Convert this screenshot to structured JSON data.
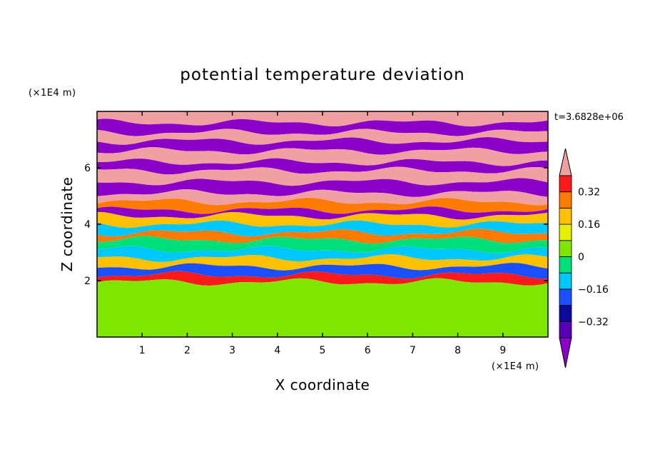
{
  "chart_data": {
    "type": "heatmap",
    "title": "potential temperature deviation",
    "xlabel": "X coordinate",
    "ylabel": "Z coordinate",
    "x_unit": "(×1E4 m)",
    "y_unit": "(×1E4 m)",
    "xlim": [
      0,
      10
    ],
    "ylim": [
      0,
      8
    ],
    "x_ticks": [
      "1",
      "2",
      "3",
      "4",
      "5",
      "6",
      "7",
      "8",
      "9"
    ],
    "y_ticks": [
      "2",
      "4",
      "6"
    ],
    "time_stamp": "t=3.6828e+06",
    "colorbar": {
      "levels": [
        -0.48,
        -0.4,
        -0.32,
        -0.24,
        -0.16,
        -0.08,
        0,
        0.08,
        0.16,
        0.24,
        0.32,
        0.4,
        0.48
      ],
      "tick_labels": [
        "0.32",
        "0.16",
        "0",
        "−0.16",
        "−0.32"
      ],
      "tick_values": [
        0.32,
        0.16,
        0,
        -0.16,
        -0.32
      ],
      "colors_low_to_high": [
        "#8b00c8",
        "#5a00b4",
        "#0a0a9c",
        "#1a50ff",
        "#00c8ff",
        "#00e07a",
        "#7ee600",
        "#e6f000",
        "#ffc000",
        "#ff7a00",
        "#ff1a1a",
        "#f0a0a0"
      ],
      "extends": "both"
    },
    "bands": [
      {
        "z_min": 7.6,
        "z_max": 8.0,
        "value": 0.45
      },
      {
        "z_min": 7.25,
        "z_max": 7.6,
        "value": -0.45
      },
      {
        "z_min": 6.95,
        "z_max": 7.25,
        "value": 0.45
      },
      {
        "z_min": 6.6,
        "z_max": 6.95,
        "value": -0.45
      },
      {
        "z_min": 6.2,
        "z_max": 6.6,
        "value": 0.45
      },
      {
        "z_min": 5.9,
        "z_max": 6.2,
        "value": -0.45
      },
      {
        "z_min": 5.5,
        "z_max": 5.9,
        "value": 0.45
      },
      {
        "z_min": 5.1,
        "z_max": 5.5,
        "value": -0.45
      },
      {
        "z_min": 4.8,
        "z_max": 5.1,
        "value": 0.45
      },
      {
        "z_min": 4.5,
        "z_max": 4.8,
        "value": 0.28
      },
      {
        "z_min": 4.3,
        "z_max": 4.5,
        "value": -0.45
      },
      {
        "z_min": 4.0,
        "z_max": 4.3,
        "value": 0.18
      },
      {
        "z_min": 3.7,
        "z_max": 4.0,
        "value": -0.1
      },
      {
        "z_min": 3.45,
        "z_max": 3.7,
        "value": 0.3
      },
      {
        "z_min": 3.1,
        "z_max": 3.45,
        "value": -0.05
      },
      {
        "z_min": 2.8,
        "z_max": 3.1,
        "value": -0.12
      },
      {
        "z_min": 2.5,
        "z_max": 2.8,
        "value": 0.2
      },
      {
        "z_min": 2.2,
        "z_max": 2.5,
        "value": -0.2
      },
      {
        "z_min": 1.95,
        "z_max": 2.2,
        "value": 0.35
      },
      {
        "z_min": 0.0,
        "z_max": 1.95,
        "value": 0.04
      }
    ]
  }
}
